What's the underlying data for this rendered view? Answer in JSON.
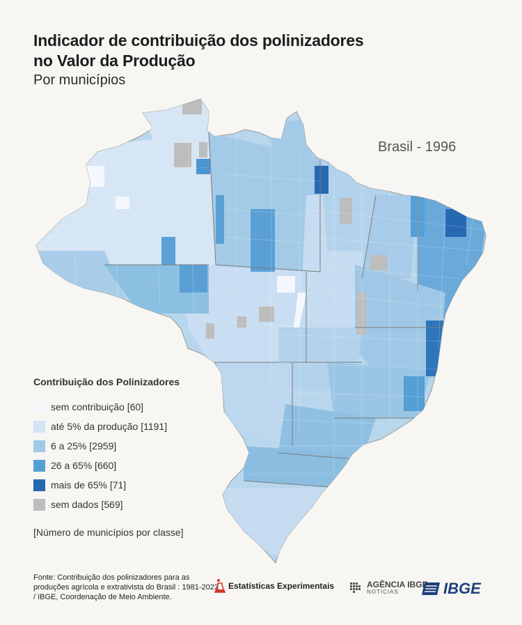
{
  "title_line1": "Indicador de contribuição dos polinizadores",
  "title_line2": "no Valor da Produção",
  "subtitle": "Por municípios",
  "year_label": "Brasil - 1996",
  "legend": {
    "title": "Contribuição dos Polinizadores",
    "items": [
      {
        "label": "sem contribuição [60]",
        "color": "#f4f8fc"
      },
      {
        "label": "até 5% da produção [1191]",
        "color": "#d3e3f4"
      },
      {
        "label": "6 a 25% [2959]",
        "color": "#9ecae6"
      },
      {
        "label": "26 a 65% [660]",
        "color": "#569fd4"
      },
      {
        "label": "mais de 65% [71]",
        "color": "#2669b2"
      },
      {
        "label": "sem dados [569]",
        "color": "#bdbdbd"
      }
    ],
    "note": "[Número de municípios por classe]"
  },
  "source": "Fonte: Contribuição dos polinizadores para as produções agrícola e extrativista do Brasil : 1981-2023 / IBGE, Coordenação de Meio Ambiente.",
  "logos": {
    "estatisticas": "Estatísticas Experimentais",
    "agencia_line1": "AGÊNCIA IBGE",
    "agencia_line2": "NOTÍCIAS",
    "ibge": "IBGE"
  }
}
